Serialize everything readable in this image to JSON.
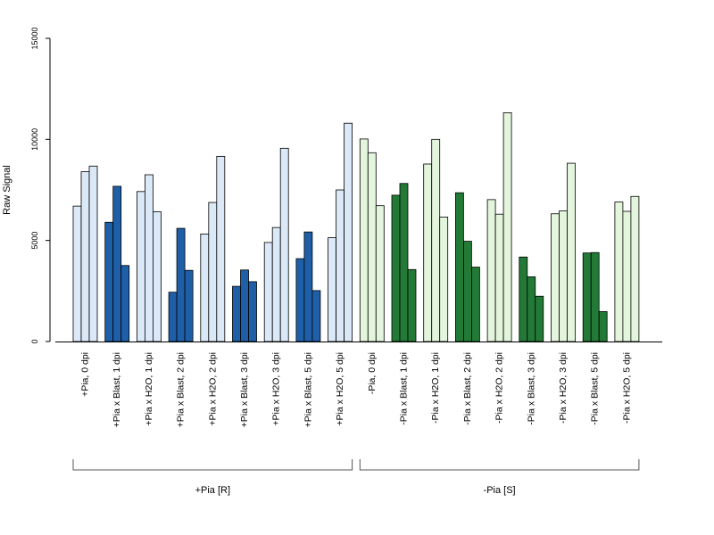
{
  "chart_data": {
    "type": "bar",
    "title": "",
    "xlabel": "",
    "ylabel": "Raw Signal",
    "ylim": [
      0,
      15000
    ],
    "yticks": [
      0,
      5000,
      10000,
      15000
    ],
    "grid": false,
    "legend": "none",
    "categories": [
      "+Pia, 0 dpi",
      "+Pia x Blast, 1 dpi",
      "+Pia x H2O, 1 dpi",
      "+Pia x Blast, 2 dpi",
      "+Pia x H2O, 2 dpi",
      "+Pia x Blast, 3 dpi",
      "+Pia x H2O, 3 dpi",
      "+Pia x Blast, 5 dpi",
      "+Pia x H2O, 5 dpi",
      "-Pia, 0 dpi",
      "-Pia x Blast, 1 dpi",
      "-Pia x H2O, 1 dpi",
      "-Pia x Blast, 2 dpi",
      "-Pia x H2O, 2 dpi",
      "-Pia x Blast, 3 dpi",
      "-Pia x H2O, 3 dpi",
      "-Pia x Blast, 5 dpi",
      "-Pia x H2O, 5 dpi"
    ],
    "replicates": [
      [
        6700,
        8400,
        8680
      ],
      [
        5900,
        7680,
        3760
      ],
      [
        7420,
        8250,
        6420
      ],
      [
        2440,
        5600,
        3520
      ],
      [
        5320,
        6880,
        9160
      ],
      [
        2730,
        3540,
        2960
      ],
      [
        4900,
        5640,
        9560
      ],
      [
        4100,
        5420,
        2520
      ],
      [
        5140,
        7500,
        10800
      ],
      [
        10020,
        9340,
        6720
      ],
      [
        7240,
        7820,
        3560
      ],
      [
        8780,
        10000,
        6160
      ],
      [
        7360,
        4960,
        3680
      ],
      [
        7020,
        6300,
        11320
      ],
      [
        4180,
        3200,
        2240
      ],
      [
        6320,
        6460,
        8820
      ],
      [
        4380,
        4400,
        1480
      ],
      [
        6900,
        6440,
        7180
      ]
    ],
    "bar_colors": [
      "#dbe8f7",
      "#1f5fa8",
      "#dbe8f7",
      "#1f5fa8",
      "#dbe8f7",
      "#1f5fa8",
      "#dbe8f7",
      "#1f5fa8",
      "#dbe8f7",
      "#e3f5dc",
      "#237a37",
      "#e3f5dc",
      "#237a37",
      "#e3f5dc",
      "#237a37",
      "#e3f5dc",
      "#237a37",
      "#e3f5dc"
    ],
    "groups": [
      {
        "label": "+Pia [R]",
        "first": 0,
        "last": 8
      },
      {
        "label": "-Pia [S]",
        "first": 9,
        "last": 17
      }
    ]
  }
}
